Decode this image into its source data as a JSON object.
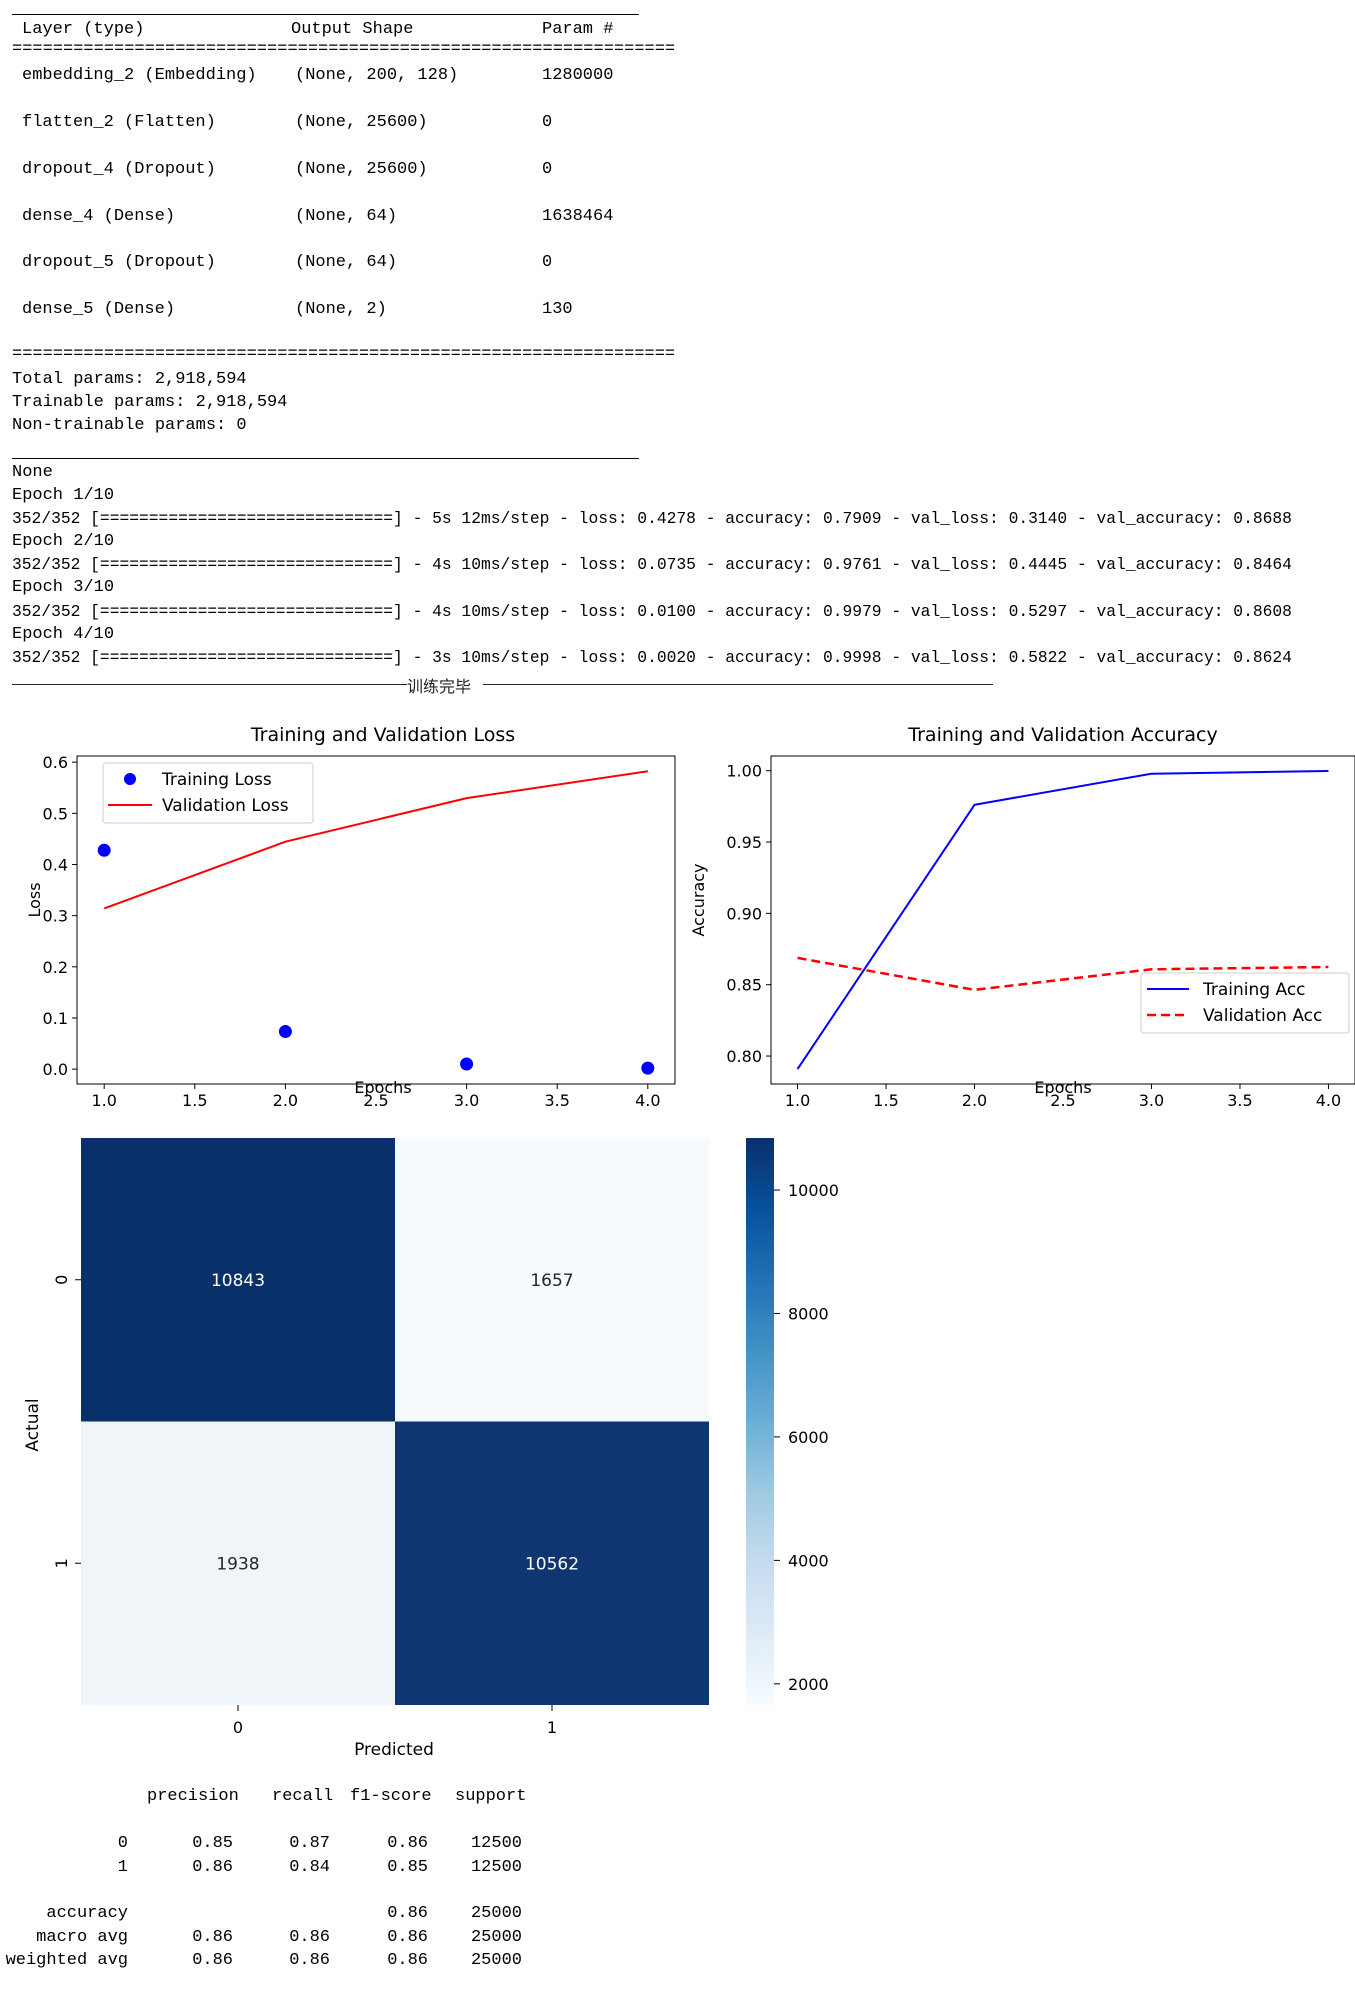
{
  "summary": {
    "headers": [
      "Layer (type)",
      "Output Shape",
      "Param #"
    ],
    "rule_eq": "=================================================================",
    "rows": [
      [
        "embedding_2 (Embedding)",
        "(None, 200, 128)",
        "1280000"
      ],
      [
        "flatten_2 (Flatten)",
        "(None, 25600)",
        "0"
      ],
      [
        "dropout_4 (Dropout)",
        "(None, 25600)",
        "0"
      ],
      [
        "dense_4 (Dense)",
        "(None, 64)",
        "1638464"
      ],
      [
        "dropout_5 (Dropout)",
        "(None, 64)",
        "0"
      ],
      [
        "dense_5 (Dense)",
        "(None, 2)",
        "130"
      ]
    ],
    "totals": [
      "Total params: 2,918,594",
      "Trainable params: 2,918,594",
      "Non-trainable params: 0"
    ]
  },
  "log": {
    "none": "None",
    "epochs": [
      {
        "epoch": "Epoch 1/10",
        "line": "352/352 [==============================] - 5s 12ms/step - loss: 0.4278 - accuracy: 0.7909 - val_loss: 0.3140 - val_accuracy: 0.8688"
      },
      {
        "epoch": "Epoch 2/10",
        "line": "352/352 [==============================] - 4s 10ms/step - loss: 0.0735 - accuracy: 0.9761 - val_loss: 0.4445 - val_accuracy: 0.8464"
      },
      {
        "epoch": "Epoch 3/10",
        "line": "352/352 [==============================] - 4s 10ms/step - loss: 0.0100 - accuracy: 0.9979 - val_loss: 0.5297 - val_accuracy: 0.8608"
      },
      {
        "epoch": "Epoch 4/10",
        "line": "352/352 [==============================] - 3s 10ms/step - loss: 0.0020 - accuracy: 0.9998 - val_loss: 0.5822 - val_accuracy: 0.8624"
      }
    ],
    "done_text": "训练完毕"
  },
  "chart_data": [
    {
      "type": "line",
      "title": "Training and Validation Loss",
      "xlabel": "Epochs",
      "ylabel": "Loss",
      "x": [
        1,
        2,
        3,
        4
      ],
      "xticks": [
        "1.0",
        "1.5",
        "2.0",
        "2.5",
        "3.0",
        "3.5",
        "4.0"
      ],
      "yticks": [
        "0.0",
        "0.1",
        "0.2",
        "0.3",
        "0.4",
        "0.5",
        "0.6"
      ],
      "xlim": [
        0.85,
        4.15
      ],
      "ylim": [
        -0.029,
        0.612
      ],
      "legend": "upper-left",
      "series": [
        {
          "name": "Training Loss",
          "style": "scatter",
          "color": "#0000ff",
          "values": [
            0.4278,
            0.0735,
            0.01,
            0.002
          ]
        },
        {
          "name": "Validation Loss",
          "style": "line",
          "color": "#ff0000",
          "values": [
            0.314,
            0.4445,
            0.5297,
            0.5822
          ]
        }
      ]
    },
    {
      "type": "line",
      "title": "Training and Validation Accuracy",
      "xlabel": "Epochs",
      "ylabel": "Accuracy",
      "x": [
        1,
        2,
        3,
        4
      ],
      "xticks": [
        "1.0",
        "1.5",
        "2.0",
        "2.5",
        "3.0",
        "3.5",
        "4.0"
      ],
      "yticks": [
        "0.80",
        "0.85",
        "0.90",
        "0.95",
        "1.00"
      ],
      "xlim": [
        0.85,
        4.15
      ],
      "ylim": [
        0.7804,
        1.0103
      ],
      "legend": "lower-right",
      "series": [
        {
          "name": "Training Acc",
          "style": "line",
          "color": "#0000ff",
          "values": [
            0.7909,
            0.9761,
            0.9979,
            0.9998
          ]
        },
        {
          "name": "Validation Acc",
          "style": "dashed",
          "color": "#ff0000",
          "values": [
            0.8688,
            0.8464,
            0.8608,
            0.8624
          ]
        }
      ]
    },
    {
      "type": "heatmap",
      "xlabel": "Predicted",
      "ylabel": "Actual",
      "x_categories": [
        "0",
        "1"
      ],
      "y_categories": [
        "0",
        "1"
      ],
      "values": [
        [
          10843,
          1657
        ],
        [
          1938,
          10562
        ]
      ],
      "vmin": 1657,
      "vmax": 10843,
      "colorbar_ticks": [
        2000,
        4000,
        6000,
        8000,
        10000
      ],
      "colormap": "Blues",
      "low_color": "#f7fbff",
      "high_color": "#08306b"
    }
  ],
  "report": {
    "headers": [
      "precision",
      "recall",
      "f1-score",
      "support"
    ],
    "rows": [
      [
        "0",
        "0.85",
        "0.87",
        "0.86",
        "12500"
      ],
      [
        "1",
        "0.86",
        "0.84",
        "0.85",
        "12500"
      ],
      [
        "accuracy",
        "",
        "",
        "0.86",
        "25000"
      ],
      [
        "macro avg",
        "0.86",
        "0.86",
        "0.86",
        "25000"
      ],
      [
        "weighted avg",
        "0.86",
        "0.86",
        "0.86",
        "25000"
      ]
    ]
  }
}
